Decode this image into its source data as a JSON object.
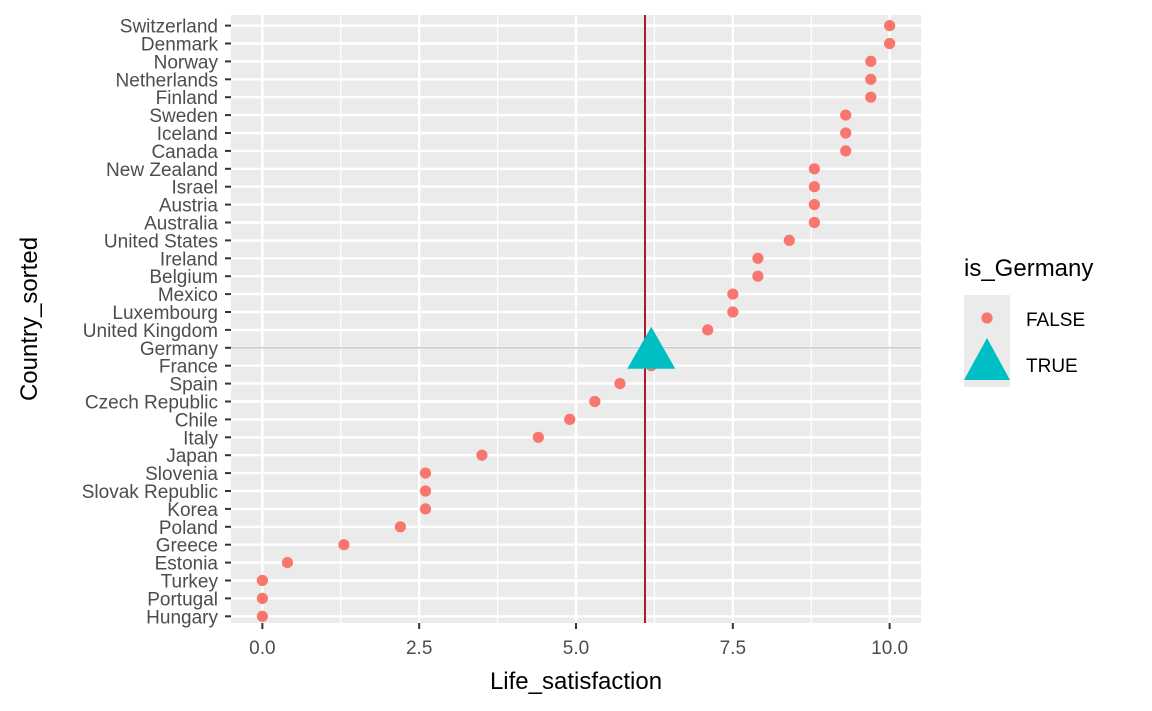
{
  "chart_data": {
    "type": "scatter",
    "xlabel": "Life_satisfaction",
    "ylabel": "Country_sorted",
    "xlim": [
      -0.5,
      10.5
    ],
    "x_ticks": [
      0.0,
      2.5,
      5.0,
      7.5,
      10.0
    ],
    "x_tick_labels": [
      "0.0",
      "2.5",
      "5.0",
      "7.5",
      "10.0"
    ],
    "reference_line": {
      "x": 6.1,
      "color": "#b2182b"
    },
    "highlight_line": {
      "category": "Germany",
      "color": "#cccccc"
    },
    "legend": {
      "title": "is_Germany",
      "position": "right",
      "entries": [
        {
          "label": "FALSE",
          "shape": "circle",
          "color": "#F8766D"
        },
        {
          "label": "TRUE",
          "shape": "triangle",
          "color": "#00BFC4"
        }
      ]
    },
    "categories": [
      "Switzerland",
      "Denmark",
      "Norway",
      "Netherlands",
      "Finland",
      "Sweden",
      "Iceland",
      "Canada",
      "New Zealand",
      "Israel",
      "Austria",
      "Australia",
      "United States",
      "Ireland",
      "Belgium",
      "Mexico",
      "Luxembourg",
      "United Kingdom",
      "Germany",
      "France",
      "Spain",
      "Czech Republic",
      "Chile",
      "Italy",
      "Japan",
      "Slovenia",
      "Slovak Republic",
      "Korea",
      "Poland",
      "Greece",
      "Estonia",
      "Turkey",
      "Portugal",
      "Hungary"
    ],
    "series": [
      {
        "name": "FALSE",
        "points": [
          {
            "country": "Switzerland",
            "value": 10.0
          },
          {
            "country": "Denmark",
            "value": 10.0
          },
          {
            "country": "Norway",
            "value": 9.7
          },
          {
            "country": "Netherlands",
            "value": 9.7
          },
          {
            "country": "Finland",
            "value": 9.7
          },
          {
            "country": "Sweden",
            "value": 9.3
          },
          {
            "country": "Iceland",
            "value": 9.3
          },
          {
            "country": "Canada",
            "value": 9.3
          },
          {
            "country": "New Zealand",
            "value": 8.8
          },
          {
            "country": "Israel",
            "value": 8.8
          },
          {
            "country": "Austria",
            "value": 8.8
          },
          {
            "country": "Australia",
            "value": 8.8
          },
          {
            "country": "United States",
            "value": 8.4
          },
          {
            "country": "Ireland",
            "value": 7.9
          },
          {
            "country": "Belgium",
            "value": 7.9
          },
          {
            "country": "Mexico",
            "value": 7.5
          },
          {
            "country": "Luxembourg",
            "value": 7.5
          },
          {
            "country": "United Kingdom",
            "value": 7.1
          },
          {
            "country": "France",
            "value": 6.2
          },
          {
            "country": "Spain",
            "value": 5.7
          },
          {
            "country": "Czech Republic",
            "value": 5.3
          },
          {
            "country": "Chile",
            "value": 4.9
          },
          {
            "country": "Italy",
            "value": 4.4
          },
          {
            "country": "Japan",
            "value": 3.5
          },
          {
            "country": "Slovenia",
            "value": 2.6
          },
          {
            "country": "Slovak Republic",
            "value": 2.6
          },
          {
            "country": "Korea",
            "value": 2.6
          },
          {
            "country": "Poland",
            "value": 2.2
          },
          {
            "country": "Greece",
            "value": 1.3
          },
          {
            "country": "Estonia",
            "value": 0.4
          },
          {
            "country": "Turkey",
            "value": 0.0
          },
          {
            "country": "Portugal",
            "value": 0.0
          },
          {
            "country": "Hungary",
            "value": 0.0
          }
        ]
      },
      {
        "name": "TRUE",
        "points": [
          {
            "country": "Germany",
            "value": 6.2
          }
        ]
      }
    ]
  }
}
